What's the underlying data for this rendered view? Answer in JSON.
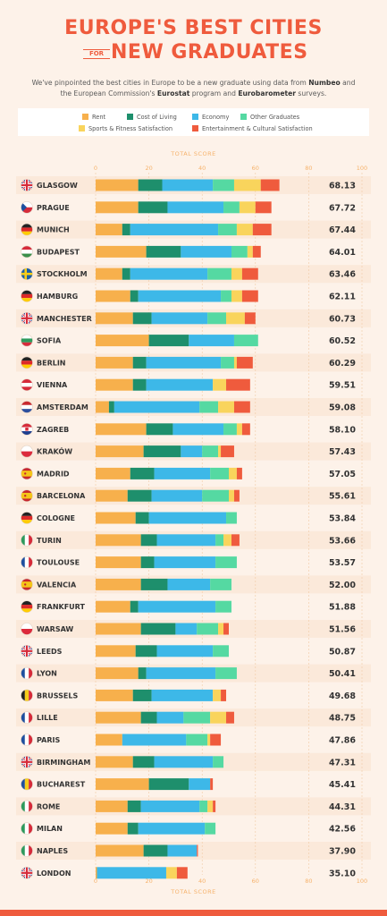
{
  "header": {
    "title_line1": "EUROPE'S BEST CITIES",
    "title_for": "FOR",
    "title_line2": "NEW GRADUATES",
    "intro_part1": "We've pinpointed the best cities in Europe to be a new graduate using data from ",
    "intro_numbeo": "Numbeo",
    "intro_part2": " and the European Commission's ",
    "intro_eurostat": "Eurostat",
    "intro_part3": " program and ",
    "intro_eurobarometer": "Eurobarometer",
    "intro_part4": " surveys."
  },
  "colors": {
    "Rent": "#f7b04c",
    "Cost of Living": "#1e8f6c",
    "Economy": "#3db8e8",
    "Other Graduates": "#55d9a2",
    "Sports & Fitness Satisfaction": "#f9d45c",
    "Entertainment & Cultural Satisfaction": "#ef5b3d"
  },
  "chart_data": {
    "type": "bar",
    "orientation": "horizontal",
    "stacked": true,
    "xlabel": "TOTAL SCORE",
    "xlim": [
      0,
      100
    ],
    "xticks": [
      "0",
      "20",
      "40",
      "60",
      "80",
      "100"
    ],
    "grid": true,
    "legend": "top",
    "categories": [
      "GLASGOW",
      "PRAGUE",
      "MUNICH",
      "BUDAPEST",
      "STOCKHOLM",
      "HAMBURG",
      "MANCHESTER",
      "SOFIA",
      "BERLIN",
      "VIENNA",
      "AMSTERDAM",
      "ZAGREB",
      "KRAKÓW",
      "MADRID",
      "BARCELONA",
      "COLOGNE",
      "TURIN",
      "TOULOUSE",
      "VALENCIA",
      "FRANKFURT",
      "WARSAW",
      "LEEDS",
      "LYON",
      "BRUSSELS",
      "LILLE",
      "PARIS",
      "BIRMINGHAM",
      "BUCHAREST",
      "ROME",
      "MILAN",
      "NAPLES",
      "LONDON"
    ],
    "flags": [
      "uk",
      "cz",
      "de",
      "hu",
      "se",
      "de",
      "uk",
      "bg",
      "de",
      "at",
      "nl",
      "hr",
      "pl",
      "es",
      "es",
      "de",
      "it",
      "fr",
      "es",
      "de",
      "pl",
      "uk",
      "fr",
      "be",
      "fr",
      "fr",
      "uk",
      "ro",
      "it",
      "it",
      "it",
      "uk"
    ],
    "scores": [
      "68.13",
      "67.72",
      "67.44",
      "64.01",
      "63.46",
      "62.11",
      "60.73",
      "60.52",
      "60.29",
      "59.51",
      "59.08",
      "58.10",
      "57.43",
      "57.05",
      "55.61",
      "53.84",
      "53.66",
      "53.57",
      "52.00",
      "51.88",
      "51.56",
      "50.87",
      "50.41",
      "49.68",
      "48.75",
      "47.86",
      "47.31",
      "45.41",
      "44.31",
      "42.56",
      "37.90",
      "35.10"
    ],
    "series": [
      {
        "name": "Rent",
        "values": [
          16,
          16,
          10,
          19,
          10,
          13,
          14,
          20,
          14,
          14,
          5,
          19,
          18,
          13,
          12,
          15,
          17,
          17,
          17,
          13,
          17,
          15,
          16,
          14,
          17,
          10,
          14,
          20,
          12,
          12,
          18,
          0.5
        ]
      },
      {
        "name": "Cost of Living",
        "values": [
          9,
          11,
          3,
          13,
          3,
          3,
          7,
          15,
          5,
          5,
          2,
          10,
          14,
          9,
          9,
          5,
          6,
          5,
          10,
          3,
          13,
          8,
          3,
          7,
          6,
          0,
          8,
          15,
          5,
          4,
          9,
          0
        ]
      },
      {
        "name": "Economy",
        "values": [
          19,
          21,
          33,
          19,
          29,
          31,
          21,
          17,
          28,
          25,
          32,
          19,
          8,
          21,
          19,
          29,
          22,
          23,
          16,
          29,
          8,
          21,
          26,
          23,
          10,
          24,
          22,
          8,
          22,
          25,
          11,
          26
        ]
      },
      {
        "name": "Other Graduates",
        "values": [
          8,
          6,
          7,
          6,
          9,
          4,
          7,
          9,
          5,
          0,
          7,
          5,
          6,
          7,
          10,
          4,
          3,
          8,
          8,
          6,
          8,
          6,
          8,
          0,
          10,
          8,
          4,
          0,
          3,
          4,
          0,
          0
        ]
      },
      {
        "name": "Sports & Fitness Satisfaction",
        "values": [
          10,
          6,
          6,
          2,
          4,
          4,
          7,
          0,
          1,
          5,
          6,
          2,
          1,
          3,
          2,
          0,
          3,
          0,
          0,
          0,
          2,
          0,
          0,
          3,
          6,
          1,
          0,
          0,
          2,
          0,
          0,
          4
        ]
      },
      {
        "name": "Entertainment & Cultural Satisfaction",
        "values": [
          7,
          6,
          7,
          3,
          6,
          6,
          4,
          0,
          6,
          9,
          6,
          3,
          5,
          2,
          2,
          0,
          3,
          0,
          0,
          0,
          2,
          0,
          0,
          2,
          3,
          4,
          0,
          1,
          1,
          0,
          0.4,
          4
        ]
      }
    ]
  }
}
